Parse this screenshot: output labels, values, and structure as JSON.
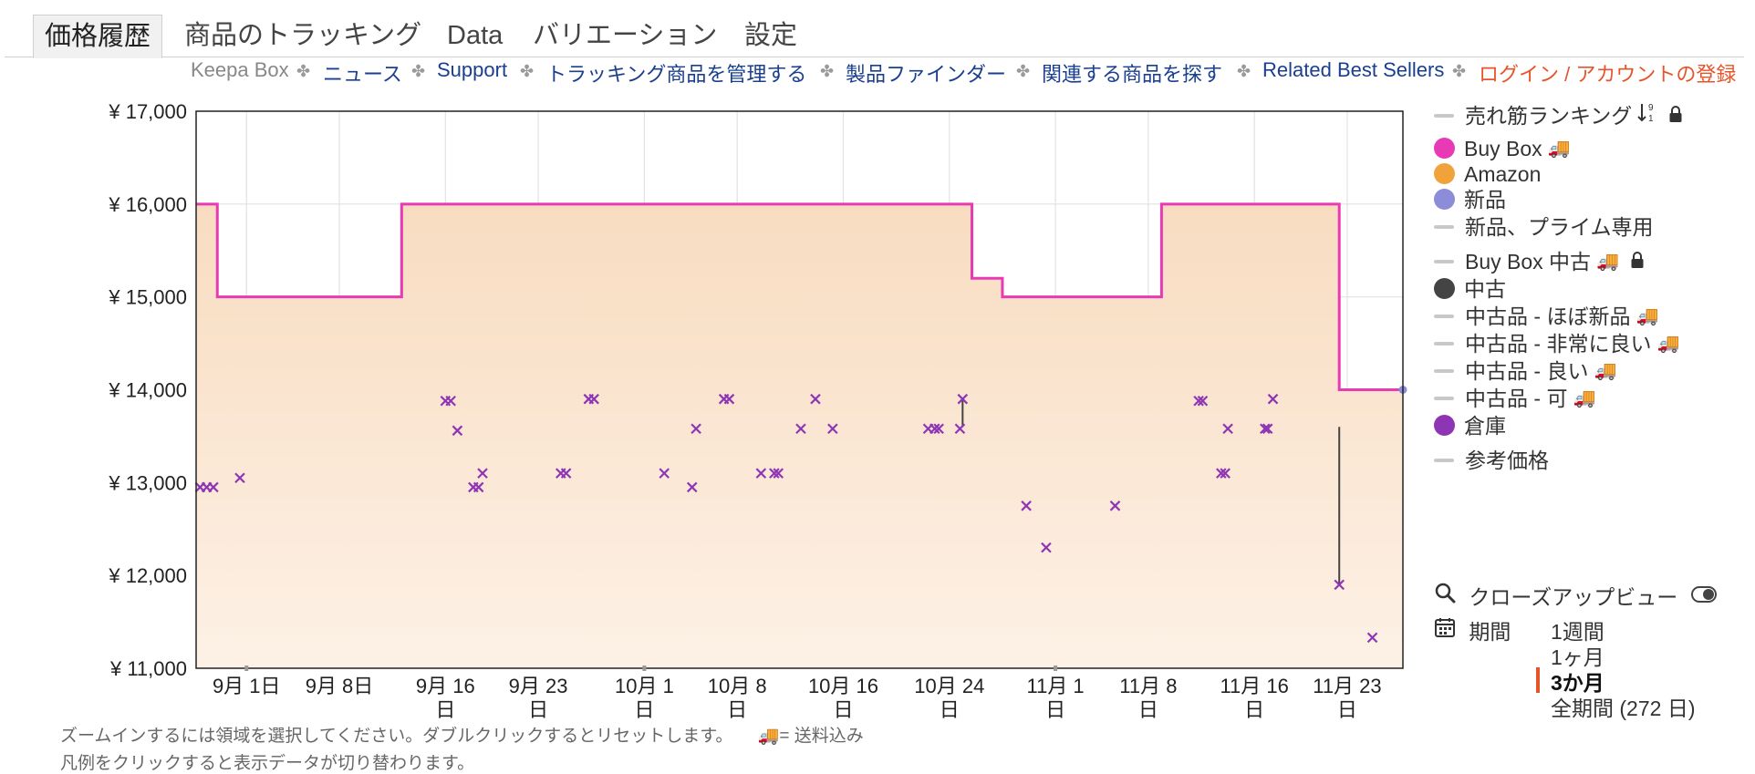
{
  "tabs": [
    "価格履歴",
    "商品のトラッキング",
    "Data",
    "バリエーション",
    "設定"
  ],
  "subnav": {
    "brand": "Keepa Box",
    "links": [
      "ニュース",
      "Support",
      "トラッキング商品を管理する",
      "製品ファインダー",
      "関連する商品を探す",
      "Related Best Sellers"
    ],
    "login": "ログイン / アカウントの登録"
  },
  "legend": {
    "items": [
      {
        "label": "売れ筋ランキング",
        "kind": "dash",
        "extra": "sort-lock"
      },
      {
        "label": "Buy Box",
        "kind": "dot",
        "color": "#e83ab4",
        "extra": "truck"
      },
      {
        "label": "Amazon",
        "kind": "dot",
        "color": "#f0a33a"
      },
      {
        "label": "新品",
        "kind": "dot",
        "color": "#8c8cd8"
      },
      {
        "label": "新品、プライム専用",
        "kind": "dash"
      },
      {
        "label": "Buy Box 中古",
        "kind": "dash",
        "extra": "truck-lock"
      },
      {
        "label": "中古",
        "kind": "dot",
        "color": "#444444"
      },
      {
        "label": "中古品 - ほぼ新品",
        "kind": "dash",
        "extra": "truck"
      },
      {
        "label": "中古品 - 非常に良い",
        "kind": "dash",
        "extra": "truck"
      },
      {
        "label": "中古品 - 良い",
        "kind": "dash",
        "extra": "truck"
      },
      {
        "label": "中古品 - 可",
        "kind": "dash",
        "extra": "truck"
      },
      {
        "label": "倉庫",
        "kind": "dot",
        "color": "#8e35b5"
      },
      {
        "label": "参考価格",
        "kind": "dash"
      }
    ]
  },
  "tools": {
    "closeup": "クローズアップビュー",
    "period": "期間",
    "ranges": [
      "1週間",
      "1ヶ月",
      "3か月",
      "全期間 (272 日)"
    ],
    "selected_range": "3か月"
  },
  "hints": {
    "line1": "ズームインするには領域を選択してください。ダブルクリックするとリセットします。",
    "shipping": "= 送料込み",
    "line2": "凡例をクリックすると表示データが切り替わります。"
  },
  "chart_data": {
    "type": "line",
    "y_ticks": [
      "¥ 17,000",
      "¥ 16,000",
      "¥ 15,000",
      "¥ 14,000",
      "¥ 13,000",
      "¥ 12,000",
      "¥ 11,000"
    ],
    "ylim": [
      11000,
      17000
    ],
    "x_ticks": [
      {
        "label": "9月 1日",
        "day": 3.8
      },
      {
        "label": "9月 8日",
        "day": 10.8
      },
      {
        "label": "9月 16\n日",
        "day": 18.8
      },
      {
        "label": "9月 23\n日",
        "day": 25.8
      },
      {
        "label": "10月 1\n日",
        "day": 33.8
      },
      {
        "label": "10月 8\n日",
        "day": 40.8
      },
      {
        "label": "10月 16\n日",
        "day": 48.8
      },
      {
        "label": "10月 24\n日",
        "day": 56.8
      },
      {
        "label": "11月 1\n日",
        "day": 64.8
      },
      {
        "label": "11月 8\n日",
        "day": 71.8
      },
      {
        "label": "11月 16\n日",
        "day": 79.8
      },
      {
        "label": "11月 23\n日",
        "day": 86.8
      }
    ],
    "xlim": [
      0,
      91
    ],
    "grid": true,
    "series": [
      {
        "name": "Buy Box",
        "color": "#e83ab4",
        "style": "step-area",
        "points": [
          [
            0,
            16000
          ],
          [
            1.6,
            16000
          ],
          [
            1.6,
            15000
          ],
          [
            15.5,
            15000
          ],
          [
            15.5,
            16000
          ],
          [
            58.5,
            16000
          ],
          [
            58.5,
            15200
          ],
          [
            60.8,
            15200
          ],
          [
            60.8,
            15000
          ],
          [
            72.8,
            15000
          ],
          [
            72.8,
            16000
          ],
          [
            86.2,
            16000
          ],
          [
            86.2,
            14000
          ],
          [
            91,
            14000
          ]
        ]
      },
      {
        "name": "倉庫",
        "color": "#8e35b5",
        "style": "x-markers",
        "points": [
          [
            0.3,
            12950
          ],
          [
            0.8,
            12950
          ],
          [
            1.3,
            12950
          ],
          [
            3.3,
            13050
          ],
          [
            18.8,
            13880
          ],
          [
            19.2,
            13880
          ],
          [
            19.7,
            13560
          ],
          [
            20.9,
            12950
          ],
          [
            21.3,
            12950
          ],
          [
            21.6,
            13100
          ],
          [
            27.5,
            13100
          ],
          [
            27.9,
            13100
          ],
          [
            29.6,
            13900
          ],
          [
            30.0,
            13900
          ],
          [
            35.3,
            13100
          ],
          [
            37.4,
            12950
          ],
          [
            37.7,
            13580
          ],
          [
            39.8,
            13900
          ],
          [
            40.2,
            13900
          ],
          [
            42.6,
            13100
          ],
          [
            43.6,
            13100
          ],
          [
            43.9,
            13100
          ],
          [
            45.6,
            13580
          ],
          [
            46.7,
            13900
          ],
          [
            48.0,
            13580
          ],
          [
            55.2,
            13580
          ],
          [
            55.7,
            13580
          ],
          [
            56.0,
            13580
          ],
          [
            57.6,
            13580
          ],
          [
            57.8,
            13900
          ],
          [
            62.6,
            12750
          ],
          [
            64.1,
            12300
          ],
          [
            69.3,
            12750
          ],
          [
            75.6,
            13880
          ],
          [
            75.9,
            13880
          ],
          [
            77.3,
            13100
          ],
          [
            77.6,
            13100
          ],
          [
            77.8,
            13580
          ],
          [
            80.6,
            13580
          ],
          [
            80.8,
            13580
          ],
          [
            81.2,
            13900
          ],
          [
            86.2,
            11900
          ],
          [
            88.7,
            11330
          ]
        ]
      }
    ]
  }
}
